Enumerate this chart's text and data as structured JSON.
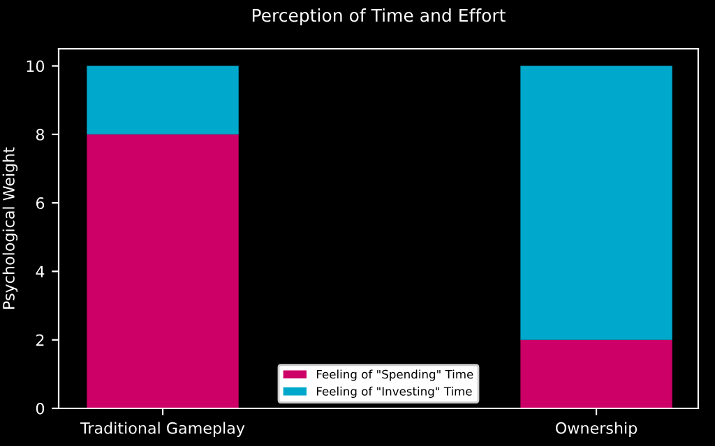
{
  "chart_data": {
    "type": "bar",
    "title": "Perception of Time and Effort",
    "ylabel": "Psychological Weight",
    "categories": [
      "Traditional Gameplay",
      "Ownership"
    ],
    "stacked": true,
    "series": [
      {
        "name": "Feeling of \"Spending\" Time",
        "color": "#cc0066",
        "values": [
          8,
          2
        ]
      },
      {
        "name": "Feeling of \"Investing\" Time",
        "color": "#00a8cc",
        "values": [
          2,
          8
        ]
      }
    ],
    "ylim": [
      0,
      10.5
    ],
    "yticks": [
      0,
      2,
      4,
      6,
      8,
      10
    ],
    "grid": false,
    "legend": "bottom"
  }
}
